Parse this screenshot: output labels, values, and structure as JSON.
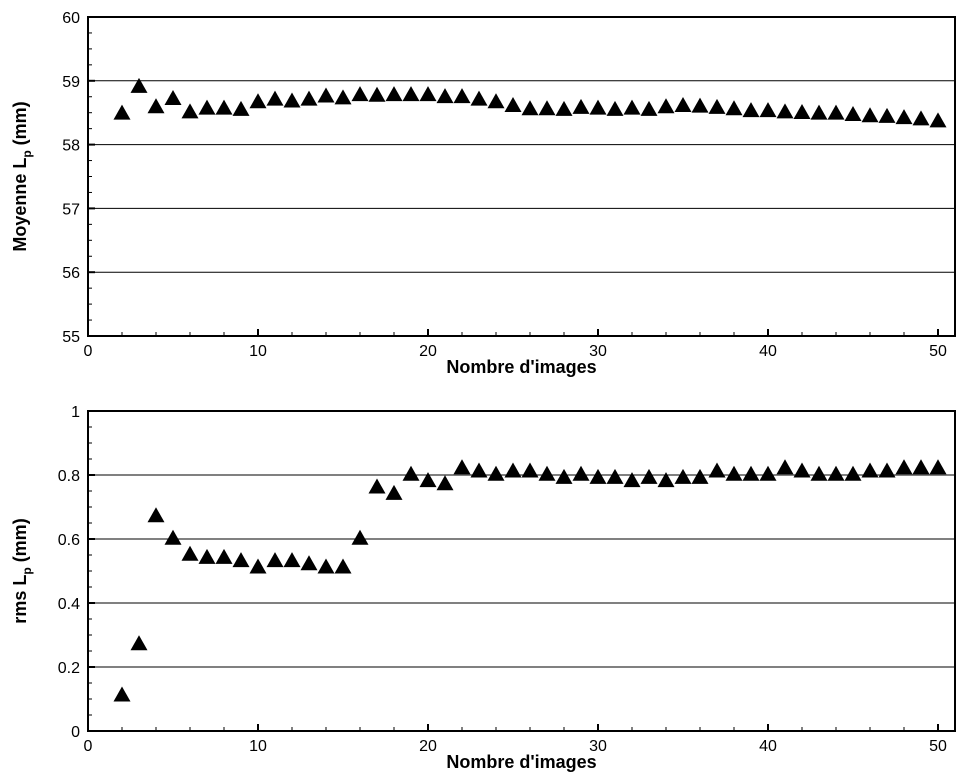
{
  "chart_data": [
    {
      "type": "scatter",
      "marker": "filled-triangle",
      "color": "#000000",
      "grid": "horizontal",
      "xlabel": "Nombre d'images",
      "ylabel": "Moyenne L",
      "ylabel_subscript": "p",
      "ylabel_unit": " (mm)",
      "xlim": [
        0,
        51
      ],
      "ylim": [
        55,
        60
      ],
      "xticks": [
        0,
        10,
        20,
        30,
        40,
        50
      ],
      "yticks": [
        55,
        56,
        57,
        58,
        59,
        60
      ],
      "x": [
        2,
        3,
        4,
        5,
        6,
        7,
        8,
        9,
        10,
        11,
        12,
        13,
        14,
        15,
        16,
        17,
        18,
        19,
        20,
        21,
        22,
        23,
        24,
        25,
        26,
        27,
        28,
        29,
        30,
        31,
        32,
        33,
        34,
        35,
        36,
        37,
        38,
        39,
        40,
        41,
        42,
        43,
        44,
        45,
        46,
        47,
        48,
        49,
        50
      ],
      "y": [
        58.48,
        58.9,
        58.58,
        58.71,
        58.5,
        58.56,
        58.56,
        58.54,
        58.66,
        58.7,
        58.67,
        58.7,
        58.75,
        58.72,
        58.77,
        58.76,
        58.77,
        58.77,
        58.77,
        58.74,
        58.74,
        58.7,
        58.66,
        58.6,
        58.55,
        58.55,
        58.54,
        58.57,
        58.56,
        58.54,
        58.56,
        58.54,
        58.58,
        58.6,
        58.59,
        58.57,
        58.55,
        58.52,
        58.52,
        58.5,
        58.49,
        58.48,
        58.48,
        58.46,
        58.44,
        58.43,
        58.41,
        58.39,
        58.36
      ]
    },
    {
      "type": "scatter",
      "marker": "filled-triangle",
      "color": "#000000",
      "grid": "horizontal",
      "xlabel": "Nombre d'images",
      "ylabel": "rms L",
      "ylabel_subscript": "p",
      "ylabel_unit": " (mm)",
      "xlim": [
        0,
        51
      ],
      "ylim": [
        0,
        1
      ],
      "xticks": [
        0,
        10,
        20,
        30,
        40,
        50
      ],
      "yticks": [
        0,
        0.2,
        0.4,
        0.6,
        0.8,
        1
      ],
      "x": [
        2,
        3,
        4,
        5,
        6,
        7,
        8,
        9,
        10,
        11,
        12,
        13,
        14,
        15,
        16,
        17,
        18,
        19,
        20,
        21,
        22,
        23,
        24,
        25,
        26,
        27,
        28,
        29,
        30,
        31,
        32,
        33,
        34,
        35,
        36,
        37,
        38,
        39,
        40,
        41,
        42,
        43,
        44,
        45,
        46,
        47,
        48,
        49,
        50
      ],
      "y": [
        0.11,
        0.27,
        0.67,
        0.6,
        0.55,
        0.54,
        0.54,
        0.53,
        0.51,
        0.53,
        0.53,
        0.52,
        0.51,
        0.51,
        0.6,
        0.76,
        0.74,
        0.8,
        0.78,
        0.77,
        0.82,
        0.81,
        0.8,
        0.81,
        0.81,
        0.8,
        0.79,
        0.8,
        0.79,
        0.79,
        0.78,
        0.79,
        0.78,
        0.79,
        0.79,
        0.81,
        0.8,
        0.8,
        0.8,
        0.82,
        0.81,
        0.8,
        0.8,
        0.8,
        0.81,
        0.81,
        0.82,
        0.82,
        0.82
      ]
    }
  ]
}
